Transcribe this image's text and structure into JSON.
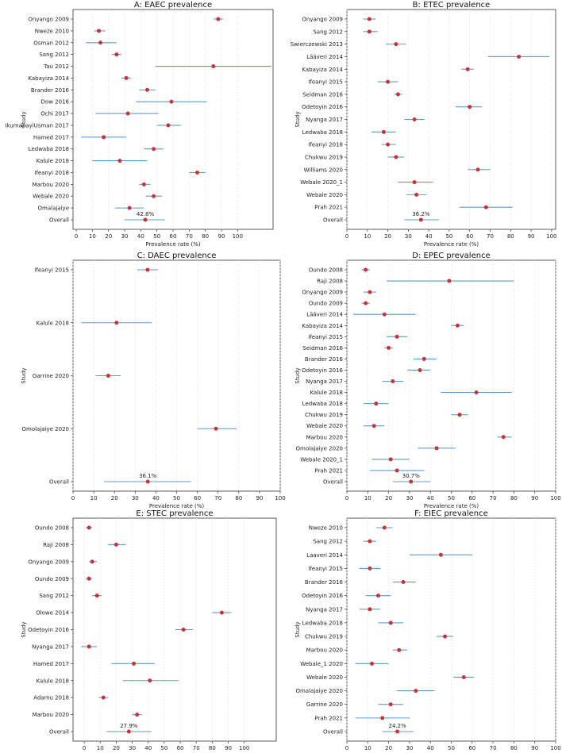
{
  "colors": {
    "point": "#c8333a",
    "ci": "#5b9bd5",
    "grid": "#e3e3e3",
    "axis": "#333333"
  },
  "chart_data": [
    {
      "id": "A",
      "type": "forest",
      "title": "A: EAEC prevalence",
      "xlabel": "Prevalence rate (%)",
      "ylabel": "Study",
      "xlim": [
        -2,
        122
      ],
      "xticks": [
        0,
        10,
        20,
        30,
        40,
        50,
        60,
        70,
        80,
        90,
        100
      ],
      "overall_label": "42.8%",
      "studies": [
        {
          "label": "Onyango 2009",
          "value": 88,
          "lo": 85,
          "hi": 91
        },
        {
          "label": "Nweze 2010",
          "value": 14,
          "lo": 11,
          "hi": 18
        },
        {
          "label": "Osman 2012",
          "value": 15,
          "lo": 6,
          "hi": 25
        },
        {
          "label": "Sang 2012",
          "value": 25,
          "lo": 22,
          "hi": 28
        },
        {
          "label": "Tau 2012",
          "value": 85,
          "lo": 49,
          "hi": 121
        },
        {
          "label": "Kabayiza 2014",
          "value": 31,
          "lo": 28,
          "hi": 34
        },
        {
          "label": "Brander 2016",
          "value": 44,
          "lo": 39,
          "hi": 49
        },
        {
          "label": "Dow 2016",
          "value": 59,
          "lo": 37,
          "hi": 81
        },
        {
          "label": "Ochi 2017",
          "value": 32,
          "lo": 12,
          "hi": 51
        },
        {
          "label": "IkumapayiUsman 2017",
          "value": 57,
          "lo": 50,
          "hi": 65
        },
        {
          "label": "Hamed 2017",
          "value": 17,
          "lo": 3,
          "hi": 31
        },
        {
          "label": "Ledwaba 2018",
          "value": 48,
          "lo": 42,
          "hi": 54
        },
        {
          "label": "Kalule 2018",
          "value": 27,
          "lo": 10,
          "hi": 44
        },
        {
          "label": "Ifeanyi 2018",
          "value": 75,
          "lo": 70,
          "hi": 80
        },
        {
          "label": "Marbou 2020",
          "value": 42,
          "lo": 39,
          "hi": 46
        },
        {
          "label": "Webale 2020",
          "value": 48,
          "lo": 43,
          "hi": 53
        },
        {
          "label": "Omalajaiye",
          "value": 33,
          "lo": 24,
          "hi": 42
        },
        {
          "label": "Overall",
          "value": 42.8,
          "lo": 30,
          "hi": 55
        }
      ]
    },
    {
      "id": "B",
      "type": "forest",
      "title": "B: ETEC prevalence",
      "xlabel": "Prevalence rate (%)",
      "ylabel": "Study",
      "xlim": [
        0,
        102
      ],
      "xticks": [
        0,
        10,
        20,
        30,
        40,
        50,
        60,
        70,
        80,
        90,
        100
      ],
      "overall_label": "36.2%",
      "studies": [
        {
          "label": "Onyango 2009",
          "value": 11,
          "lo": 8,
          "hi": 14
        },
        {
          "label": "Sang 2012",
          "value": 11,
          "lo": 8,
          "hi": 15
        },
        {
          "label": "Swierczewski 2013",
          "value": 24,
          "lo": 19,
          "hi": 29
        },
        {
          "label": "Lääveri 2014",
          "value": 84,
          "lo": 69,
          "hi": 99
        },
        {
          "label": "Kabayiza 2014",
          "value": 59,
          "lo": 56,
          "hi": 62
        },
        {
          "label": "Ifeanyi 2015",
          "value": 20,
          "lo": 15,
          "hi": 25
        },
        {
          "label": "Seidman 2016",
          "value": 25,
          "lo": 23,
          "hi": 27
        },
        {
          "label": "Odetoyin 2016",
          "value": 60,
          "lo": 53,
          "hi": 66
        },
        {
          "label": "Nyanga 2017",
          "value": 33,
          "lo": 28,
          "hi": 38
        },
        {
          "label": "Ledwaba 2018",
          "value": 18,
          "lo": 12,
          "hi": 24
        },
        {
          "label": "Ifeanyi 2018",
          "value": 20,
          "lo": 17,
          "hi": 24
        },
        {
          "label": "Chukwu 2019",
          "value": 24,
          "lo": 20,
          "hi": 28
        },
        {
          "label": "Williams 2020",
          "value": 64,
          "lo": 59,
          "hi": 70
        },
        {
          "label": "Webale 2020_1",
          "value": 33,
          "lo": 25,
          "hi": 42
        },
        {
          "label": "Webale 2020",
          "value": 34,
          "lo": 29,
          "hi": 39
        },
        {
          "label": "Prah 2021",
          "value": 68,
          "lo": 55,
          "hi": 81
        },
        {
          "label": "Overall",
          "value": 36.2,
          "lo": 28,
          "hi": 45
        }
      ]
    },
    {
      "id": "C",
      "type": "forest",
      "title": "C: DAEC prevalence",
      "xlabel": "Prevalence rate (%)",
      "ylabel": "Study",
      "xlim": [
        0,
        100
      ],
      "xticks": [
        0,
        10,
        20,
        30,
        40,
        50,
        60,
        70,
        80,
        90,
        100
      ],
      "overall_label": "36.1%",
      "studies": [
        {
          "label": "Ifeanyi 2015",
          "value": 36,
          "lo": 31,
          "hi": 41
        },
        {
          "label": "Kalule 2018",
          "value": 21,
          "lo": 4,
          "hi": 38
        },
        {
          "label": "Garrine 2020",
          "value": 17,
          "lo": 11,
          "hi": 23
        },
        {
          "label": "Omolajaiye 2020",
          "value": 69,
          "lo": 60,
          "hi": 79
        },
        {
          "label": "Overall",
          "value": 36.1,
          "lo": 15,
          "hi": 57
        }
      ]
    },
    {
      "id": "D",
      "type": "forest",
      "title": "D: EPEC prevalence",
      "xlabel": "Prevalence rate (%)",
      "ylabel": "Study",
      "xlim": [
        0,
        100
      ],
      "xticks": [
        0,
        10,
        20,
        30,
        40,
        50,
        60,
        70,
        80,
        90,
        100
      ],
      "overall_label": "30.7%",
      "studies": [
        {
          "label": "Oundo 2008",
          "value": 9,
          "lo": 7,
          "hi": 11
        },
        {
          "label": "Raji 2008",
          "value": 49,
          "lo": 19,
          "hi": 80
        },
        {
          "label": "Onyango 2009",
          "value": 11,
          "lo": 8,
          "hi": 14
        },
        {
          "label": "Oundo 2009",
          "value": 9,
          "lo": 7,
          "hi": 11
        },
        {
          "label": "Lääveri 2014",
          "value": 18,
          "lo": 3,
          "hi": 33
        },
        {
          "label": "Kabayiza 2014",
          "value": 53,
          "lo": 50,
          "hi": 56
        },
        {
          "label": "Ifeanyi 2015",
          "value": 24,
          "lo": 19,
          "hi": 29
        },
        {
          "label": "Seidman 2016",
          "value": 20,
          "lo": 18,
          "hi": 22
        },
        {
          "label": "Brander 2016",
          "value": 37,
          "lo": 32,
          "hi": 43
        },
        {
          "label": "Odetoyin 2016",
          "value": 35,
          "lo": 29,
          "hi": 40
        },
        {
          "label": "Nyanga 2017",
          "value": 22,
          "lo": 17,
          "hi": 27
        },
        {
          "label": "Kalule 2018",
          "value": 62,
          "lo": 45,
          "hi": 79
        },
        {
          "label": "Ledwaba 2018",
          "value": 14,
          "lo": 8,
          "hi": 20
        },
        {
          "label": "Chukwu 2019",
          "value": 54,
          "lo": 50,
          "hi": 58
        },
        {
          "label": "Webale 2020",
          "value": 13,
          "lo": 8,
          "hi": 18
        },
        {
          "label": "Marbou 2020",
          "value": 75,
          "lo": 72,
          "hi": 79
        },
        {
          "label": "Omolajaiye 2020",
          "value": 43,
          "lo": 34,
          "hi": 52
        },
        {
          "label": "Webale 2020_1",
          "value": 21,
          "lo": 12,
          "hi": 30
        },
        {
          "label": "Prah 2021",
          "value": 24,
          "lo": 11,
          "hi": 37
        },
        {
          "label": "Overall",
          "value": 30.7,
          "lo": 22,
          "hi": 40
        }
      ]
    },
    {
      "id": "E",
      "type": "forest",
      "title": "E: STEC prevalence",
      "xlabel": "Prevalence rate (%)",
      "ylabel": "Study",
      "xlim": [
        -7,
        120
      ],
      "xticks": [
        0,
        10,
        20,
        30,
        40,
        50,
        60,
        70,
        80,
        90,
        100
      ],
      "overall_label": "27.9%",
      "studies": [
        {
          "label": "Oundo 2008",
          "value": 3,
          "lo": 1,
          "hi": 5
        },
        {
          "label": "Raji 2008",
          "value": 20,
          "lo": 15,
          "hi": 26
        },
        {
          "label": "Onyango 2009",
          "value": 5,
          "lo": 3,
          "hi": 8
        },
        {
          "label": "Oundo 2009",
          "value": 3,
          "lo": 1,
          "hi": 5
        },
        {
          "label": "Sang 2012",
          "value": 8,
          "lo": 5,
          "hi": 11
        },
        {
          "label": "Olowe 2014",
          "value": 86,
          "lo": 80,
          "hi": 92
        },
        {
          "label": "Odetoyin 2016",
          "value": 62,
          "lo": 57,
          "hi": 68
        },
        {
          "label": "Nyanga 2017",
          "value": 3,
          "lo": -2,
          "hi": 8
        },
        {
          "label": "Hamed 2017",
          "value": 31,
          "lo": 17,
          "hi": 44
        },
        {
          "label": "Kalule 2018",
          "value": 41,
          "lo": 24,
          "hi": 59
        },
        {
          "label": "Adamu 2018",
          "value": 12,
          "lo": 9,
          "hi": 15
        },
        {
          "label": "Marbou 2020",
          "value": 33,
          "lo": 30,
          "hi": 36
        },
        {
          "label": "Overall",
          "value": 27.9,
          "lo": 14,
          "hi": 42
        }
      ]
    },
    {
      "id": "F",
      "type": "forest",
      "title": "F: EIEC prevalence",
      "xlabel": "Prevalence rate (%)",
      "ylabel": "Study",
      "xlim": [
        0,
        100
      ],
      "xticks": [
        0,
        10,
        20,
        30,
        40,
        50,
        60,
        70,
        80,
        90,
        100
      ],
      "overall_label": "24.2%",
      "studies": [
        {
          "label": "Nweze 2010",
          "value": 18,
          "lo": 14,
          "hi": 22
        },
        {
          "label": "Sang 2012",
          "value": 11,
          "lo": 8,
          "hi": 14
        },
        {
          "label": "Laaveri 2014",
          "value": 45,
          "lo": 30,
          "hi": 60
        },
        {
          "label": "Ifeanyi 2015",
          "value": 11,
          "lo": 6,
          "hi": 16
        },
        {
          "label": "Brander 2016",
          "value": 27,
          "lo": 22,
          "hi": 33
        },
        {
          "label": "Odetoyin 2016",
          "value": 15,
          "lo": 9,
          "hi": 21
        },
        {
          "label": "Nyanga 2017",
          "value": 11,
          "lo": 6,
          "hi": 16
        },
        {
          "label": "Ledwaba 2018",
          "value": 21,
          "lo": 15,
          "hi": 27
        },
        {
          "label": "Chukwu 2019",
          "value": 47,
          "lo": 43,
          "hi": 51
        },
        {
          "label": "Marbou 2020",
          "value": 25,
          "lo": 22,
          "hi": 29
        },
        {
          "label": "Webale_1 2020",
          "value": 12,
          "lo": 4,
          "hi": 20
        },
        {
          "label": "Webale 2020",
          "value": 56,
          "lo": 51,
          "hi": 61
        },
        {
          "label": "Omalajaiye 2020",
          "value": 33,
          "lo": 24,
          "hi": 42
        },
        {
          "label": "Garrine 2020",
          "value": 21,
          "lo": 15,
          "hi": 27
        },
        {
          "label": "Prah 2021",
          "value": 17,
          "lo": 4,
          "hi": 30
        },
        {
          "label": "Overall",
          "value": 24.2,
          "lo": 17,
          "hi": 32
        }
      ]
    }
  ]
}
